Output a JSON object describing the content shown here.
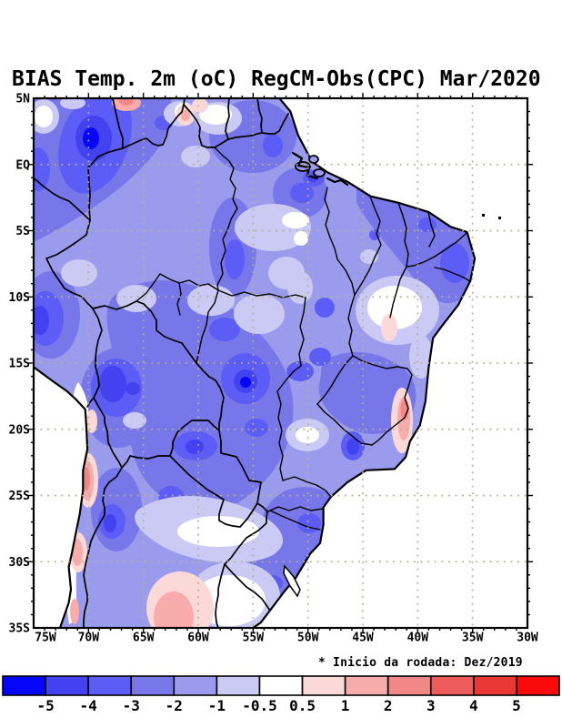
{
  "title": "BIAS Temp. 2m (oC) RegCM-Obs(CPC) Mar/2020",
  "annotation": "* Inicio da rodada: Dez/2019",
  "chart_data": {
    "type": "heatmap",
    "title": "BIAS Temp. 2m (oC) RegCM-Obs(CPC) Mar/2020",
    "variable": "2-meter air temperature bias, RegCM model minus CPC observations",
    "units": "oC",
    "period": "Mar/2020",
    "run_start_note": "* Inicio da rodada: Dez/2019",
    "region": "South America / Brazil",
    "lon_range_deg": [
      -75,
      -30
    ],
    "lat_range_deg": [
      -35,
      5
    ],
    "grid": "dotted graticule every 5 degrees",
    "x_axis": {
      "ticks": [
        {
          "lon": -75,
          "label": "75W"
        },
        {
          "lon": -70,
          "label": "70W"
        },
        {
          "lon": -65,
          "label": "65W"
        },
        {
          "lon": -60,
          "label": "60W"
        },
        {
          "lon": -55,
          "label": "55W"
        },
        {
          "lon": -50,
          "label": "50W"
        },
        {
          "lon": -45,
          "label": "45W"
        },
        {
          "lon": -40,
          "label": "40W"
        },
        {
          "lon": -35,
          "label": "35W"
        },
        {
          "lon": -30,
          "label": "30W"
        }
      ]
    },
    "y_axis": {
      "ticks": [
        {
          "lat": 5,
          "label": "5N"
        },
        {
          "lat": 0,
          "label": "EQ"
        },
        {
          "lat": -5,
          "label": "5S"
        },
        {
          "lat": -10,
          "label": "10S"
        },
        {
          "lat": -15,
          "label": "15S"
        },
        {
          "lat": -20,
          "label": "20S"
        },
        {
          "lat": -25,
          "label": "25S"
        },
        {
          "lat": -30,
          "label": "30S"
        },
        {
          "lat": -35,
          "label": "35S"
        }
      ]
    },
    "colorbar": {
      "boundary_labels": [
        "-5",
        "-4",
        "-3",
        "-2",
        "-1",
        "-0.5",
        "0.5",
        "1",
        "2",
        "3",
        "4",
        "5"
      ],
      "segment_colors": [
        "#0505fa",
        "#4242f0",
        "#5c5cf6",
        "#7777e9",
        "#9b9bee",
        "#cacaf4",
        "#ffffff",
        "#fbd9d9",
        "#f7abab",
        "#f28787",
        "#ee5c5c",
        "#eb3636",
        "#fb0a0a"
      ]
    },
    "field_summary": [
      {
        "region": "NW Amazon (~70W, 0N)",
        "bias_oC": "-4 to -5 (coldest core)"
      },
      {
        "region": "Amazon basin and most of Brazil",
        "bias_oC": "-1 to -3"
      },
      {
        "region": "Bolivia / Mato Grosso (~58W, 17S)",
        "bias_oC": "-3 to -5"
      },
      {
        "region": "Paraguay (~58W, 21S)",
        "bias_oC": "-3 to -4"
      },
      {
        "region": "Sao Paulo area (~48.5W, 22S)",
        "bias_oC": "-3 to -4"
      },
      {
        "region": "NE Brazil interior (~43W, 10S)",
        "bias_oC": "-0.5 to +1"
      },
      {
        "region": "Espirito Santo coast (~41W, 19S)",
        "bias_oC": "+1 to +3"
      },
      {
        "region": "Andes / Chile coastal strip (70W, 15S-34S)",
        "bias_oC": "+1 to +3"
      },
      {
        "region": "N Argentina (~61W, 34S)",
        "bias_oC": "+0.5 to +2"
      },
      {
        "region": "Guiana coast spots (62W 5N, 55W 5N, 51W 4N)",
        "bias_oC": "+0.5 to +2"
      },
      {
        "region": "Oceans",
        "bias_oC": "no data (white)"
      }
    ]
  }
}
